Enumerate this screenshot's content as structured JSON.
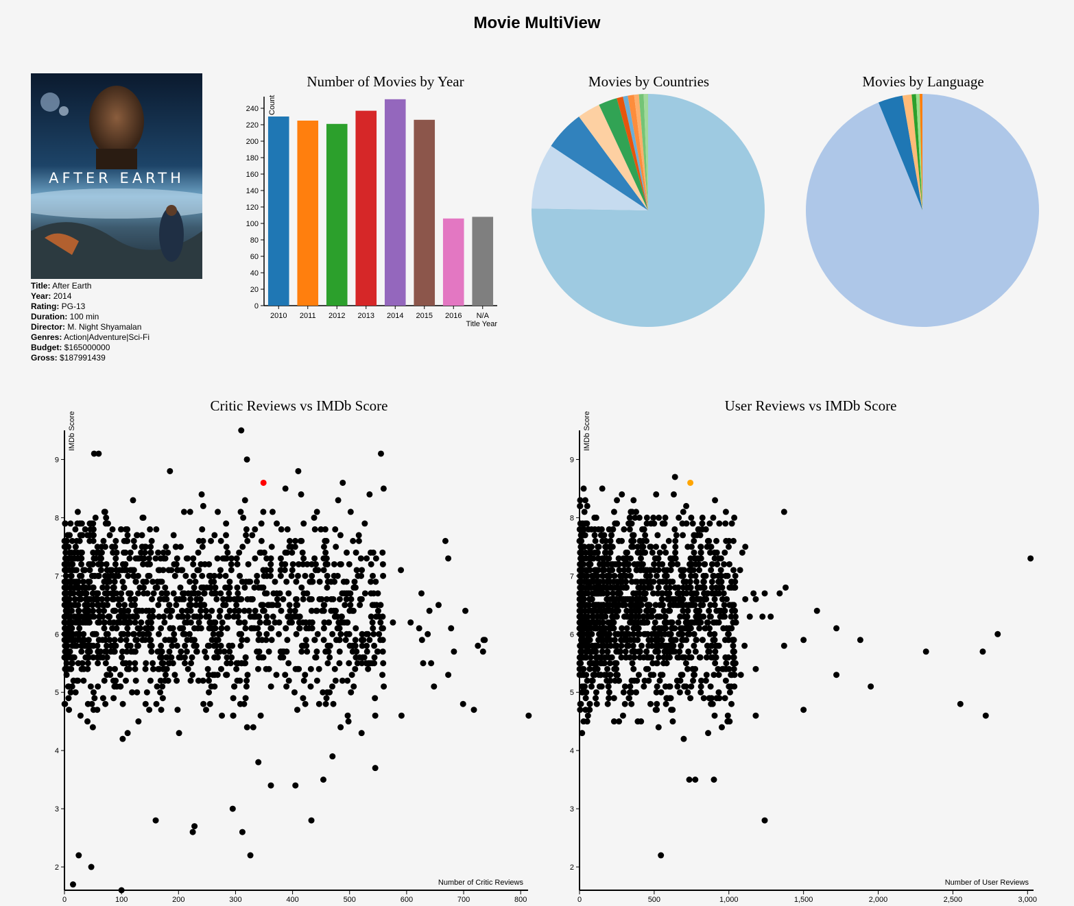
{
  "page": {
    "title": "Movie MultiView"
  },
  "movie": {
    "poster_text": "AFTER EARTH",
    "fields": [
      {
        "label": "Title:",
        "value": "After Earth"
      },
      {
        "label": "Year:",
        "value": "2014"
      },
      {
        "label": "Rating:",
        "value": "PG-13"
      },
      {
        "label": "Duration:",
        "value": "100 min"
      },
      {
        "label": "Director:",
        "value": "M. Night Shyamalan"
      },
      {
        "label": "Genres:",
        "value": "Action|Adventure|Sci-Fi"
      },
      {
        "label": "Budget:",
        "value": "$165000000"
      },
      {
        "label": "Gross:",
        "value": "$187991439"
      }
    ]
  },
  "chart_data": [
    {
      "type": "bar",
      "title": "Number of Movies by Year",
      "xlabel": "Title Year",
      "ylabel": "Count",
      "categories": [
        "2010",
        "2011",
        "2012",
        "2013",
        "2014",
        "2015",
        "2016",
        "N/A"
      ],
      "values": [
        230,
        225,
        221,
        237,
        251,
        226,
        106,
        108
      ],
      "ylim": [
        0,
        250
      ],
      "yticks": [
        0,
        20,
        40,
        60,
        80,
        100,
        120,
        140,
        160,
        180,
        200,
        220,
        240
      ],
      "colors": [
        "#1f77b4",
        "#ff7f0e",
        "#2ca02c",
        "#d62728",
        "#9467bd",
        "#8c564b",
        "#e377c2",
        "#7f7f7f"
      ]
    },
    {
      "type": "pie",
      "title": "Movies by Countries",
      "values": [
        1370,
        165,
        101,
        58,
        47,
        16,
        12,
        16,
        12,
        12,
        11
      ],
      "colors": [
        "#9ecae1",
        "#c6dbef",
        "#3182bd",
        "#fdd0a2",
        "#31a354",
        "#e6550d",
        "#6baed6",
        "#fd8d3c",
        "#fdae6b",
        "#74c476",
        "#a1d99b"
      ]
    },
    {
      "type": "pie",
      "title": "Movies by Language",
      "values": [
        1710,
        62,
        23,
        11,
        9,
        7
      ],
      "colors": [
        "#aec7e8",
        "#1f77b4",
        "#ffbb78",
        "#2ca02c",
        "#98df8a",
        "#ff7f0e"
      ]
    },
    {
      "type": "scatter",
      "title": "Critic Reviews vs IMDb Score",
      "xlabel": "Number of Critic Reviews",
      "ylabel": "IMDb Score",
      "xlim": [
        0,
        813
      ],
      "ylim": [
        1.6,
        9.5
      ],
      "xticks": [
        0,
        100,
        200,
        300,
        400,
        500,
        600,
        700,
        800
      ],
      "yticks": [
        2,
        3,
        4,
        5,
        6,
        7,
        8,
        9
      ],
      "highlight": {
        "x": 349,
        "y": 8.6,
        "color": "#ff0000"
      },
      "outliers": [
        {
          "x": 310,
          "y": 9.5
        },
        {
          "x": 555,
          "y": 9.1
        },
        {
          "x": 60,
          "y": 9.1
        },
        {
          "x": 52,
          "y": 9.1
        },
        {
          "x": 320,
          "y": 9.0
        },
        {
          "x": 185,
          "y": 8.8
        },
        {
          "x": 410,
          "y": 8.8
        },
        {
          "x": 488,
          "y": 8.6
        },
        {
          "x": 535,
          "y": 8.4
        },
        {
          "x": 668,
          "y": 7.6
        },
        {
          "x": 673,
          "y": 7.3
        },
        {
          "x": 590,
          "y": 7.1
        },
        {
          "x": 626,
          "y": 6.7
        },
        {
          "x": 656,
          "y": 6.5
        },
        {
          "x": 640,
          "y": 6.4
        },
        {
          "x": 703,
          "y": 6.4
        },
        {
          "x": 576,
          "y": 6.2
        },
        {
          "x": 607,
          "y": 6.2
        },
        {
          "x": 622,
          "y": 6.1
        },
        {
          "x": 678,
          "y": 6.1
        },
        {
          "x": 637,
          "y": 6.0
        },
        {
          "x": 627,
          "y": 5.9
        },
        {
          "x": 737,
          "y": 5.9
        },
        {
          "x": 735,
          "y": 5.9
        },
        {
          "x": 725,
          "y": 5.8
        },
        {
          "x": 683,
          "y": 5.7
        },
        {
          "x": 734,
          "y": 5.7
        },
        {
          "x": 629,
          "y": 5.5
        },
        {
          "x": 643,
          "y": 5.5
        },
        {
          "x": 673,
          "y": 5.3
        },
        {
          "x": 648,
          "y": 5.1
        },
        {
          "x": 699,
          "y": 4.8
        },
        {
          "x": 718,
          "y": 4.7
        },
        {
          "x": 814,
          "y": 4.6
        },
        {
          "x": 591,
          "y": 4.6
        },
        {
          "x": 498,
          "y": 4.5
        },
        {
          "x": 521,
          "y": 4.3
        },
        {
          "x": 545,
          "y": 4.6
        },
        {
          "x": 545,
          "y": 3.7
        },
        {
          "x": 470,
          "y": 3.9
        },
        {
          "x": 433,
          "y": 2.8
        },
        {
          "x": 454,
          "y": 3.5
        },
        {
          "x": 405,
          "y": 3.4
        },
        {
          "x": 362,
          "y": 3.4
        },
        {
          "x": 312,
          "y": 2.6
        },
        {
          "x": 326,
          "y": 2.2
        },
        {
          "x": 100,
          "y": 1.6
        },
        {
          "x": 47,
          "y": 2.0
        },
        {
          "x": 25,
          "y": 2.2
        },
        {
          "x": 15,
          "y": 1.7
        },
        {
          "x": 160,
          "y": 2.8
        },
        {
          "x": 225,
          "y": 2.6
        },
        {
          "x": 228,
          "y": 2.7
        },
        {
          "x": 295,
          "y": 3.0
        },
        {
          "x": 340,
          "y": 3.8
        }
      ]
    },
    {
      "type": "scatter",
      "title": "User Reviews vs IMDb Score",
      "xlabel": "Number of User Reviews",
      "ylabel": "IMDb Score",
      "xlim": [
        0,
        3040
      ],
      "ylim": [
        1.6,
        9.5
      ],
      "xticks": [
        0,
        500,
        1000,
        1500,
        2000,
        2500,
        3000
      ],
      "xtick_labels": [
        "0",
        "500",
        "1,000",
        "1,500",
        "2,000",
        "2,500",
        "3,000"
      ],
      "yticks": [
        2,
        3,
        4,
        5,
        6,
        7,
        8,
        9
      ],
      "highlight": {
        "x": 742,
        "y": 8.6,
        "color": "#ffa500"
      },
      "outliers": [
        {
          "x": 3020,
          "y": 7.3
        },
        {
          "x": 2800,
          "y": 6.0
        },
        {
          "x": 2700,
          "y": 5.7
        },
        {
          "x": 2720,
          "y": 4.6
        },
        {
          "x": 2550,
          "y": 4.8
        },
        {
          "x": 2320,
          "y": 5.7
        },
        {
          "x": 1950,
          "y": 5.1
        },
        {
          "x": 1880,
          "y": 5.9
        },
        {
          "x": 1720,
          "y": 6.1
        },
        {
          "x": 1720,
          "y": 5.3
        },
        {
          "x": 1590,
          "y": 6.4
        },
        {
          "x": 1500,
          "y": 5.9
        },
        {
          "x": 1500,
          "y": 4.7
        },
        {
          "x": 1370,
          "y": 8.1
        },
        {
          "x": 1370,
          "y": 5.8
        },
        {
          "x": 1380,
          "y": 6.8
        },
        {
          "x": 1240,
          "y": 2.8
        },
        {
          "x": 1180,
          "y": 4.6
        },
        {
          "x": 1180,
          "y": 5.4
        },
        {
          "x": 1280,
          "y": 6.3
        },
        {
          "x": 1225,
          "y": 6.3
        },
        {
          "x": 1140,
          "y": 6.3
        },
        {
          "x": 1105,
          "y": 5.8
        },
        {
          "x": 1075,
          "y": 7.1
        },
        {
          "x": 1020,
          "y": 7.9
        },
        {
          "x": 1110,
          "y": 7.5
        },
        {
          "x": 1165,
          "y": 6.7
        },
        {
          "x": 1240,
          "y": 6.7
        },
        {
          "x": 1180,
          "y": 6.6
        },
        {
          "x": 1080,
          "y": 5.3
        },
        {
          "x": 1030,
          "y": 5.6
        },
        {
          "x": 1000,
          "y": 5.1
        },
        {
          "x": 980,
          "y": 5.2
        },
        {
          "x": 900,
          "y": 3.5
        },
        {
          "x": 775,
          "y": 3.5
        },
        {
          "x": 735,
          "y": 3.5
        },
        {
          "x": 545,
          "y": 2.2
        },
        {
          "x": 1090,
          "y": 7.4
        },
        {
          "x": 1110,
          "y": 6.6
        },
        {
          "x": 1340,
          "y": 6.7
        }
      ]
    }
  ]
}
